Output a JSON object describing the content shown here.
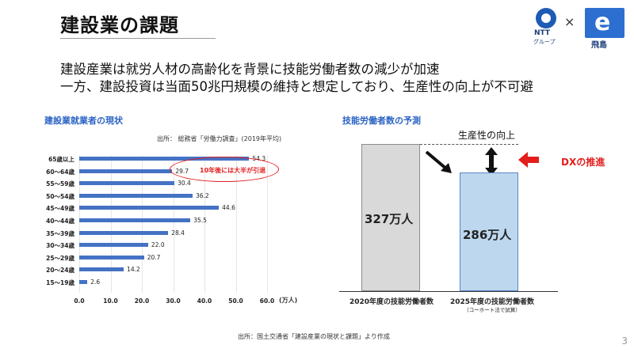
{
  "header": {
    "title": "建設業の課題",
    "logo_ntt_text": "NTT",
    "logo_ntt_sub": "グループ",
    "times_sign": "×",
    "logo_tobishima_glyph": "e",
    "logo_tobishima_text": "飛島"
  },
  "lead": {
    "line1": "建設産業は就労人材の高齢化を背景に技能労働者数の減少が加速",
    "line2": "一方、建設投資は当面50兆円規模の維持と想定しており、生産性の向上が不可避"
  },
  "left_chart": {
    "section_title": "建設業就業者の現状",
    "source": "出所： 総務省「労働力調査」(2019年平均)",
    "annotation": "10年後には大半が引退",
    "unit": "(万人)",
    "colors": {
      "bar": "#4472c4",
      "annotation": "#e41d1d"
    }
  },
  "right_chart": {
    "section_title": "技能労働者数の予測",
    "productivity_label": "生産性の向上",
    "dx_label": "DXの推進",
    "bar1_value_label": "327万人",
    "bar2_value_label": "286万人",
    "bar1_category": "2020年度の技能労働者数",
    "bar2_category": "2025年度の技能労働者数",
    "bar2_subnote": "（コーホート法で試算）"
  },
  "chart_data": [
    {
      "type": "bar",
      "orientation": "horizontal",
      "title": "建設業就業者の現状",
      "categories": [
        "65歳以上",
        "60～64歳",
        "55～59歳",
        "50～54歳",
        "45～49歳",
        "40～44歳",
        "35～39歳",
        "30～34歳",
        "25～29歳",
        "20～24歳",
        "15～19歳"
      ],
      "values": [
        54.3,
        29.7,
        30.4,
        36.2,
        44.6,
        35.5,
        28.4,
        22.0,
        20.7,
        14.2,
        2.6
      ],
      "value_labels": [
        "54.3",
        "29.7",
        "30.4",
        "36.2",
        "44.6",
        "35.5",
        "28.4",
        "22.0",
        "20.7",
        "14.2",
        "2.6"
      ],
      "xticks": [
        "0.0",
        "10.0",
        "20.0",
        "30.0",
        "40.0",
        "50.0",
        "60.0"
      ],
      "xlabel": "(万人)",
      "xlim": [
        0,
        60
      ],
      "grid": true
    },
    {
      "type": "bar",
      "title": "技能労働者数の予測",
      "categories": [
        "2020年度の技能労働者数",
        "2025年度の技能労働者数"
      ],
      "values": [
        327,
        286
      ],
      "unit": "万人",
      "colors": [
        "#d9d9d9",
        "#bdd7ee"
      ]
    }
  ],
  "footer": {
    "source": "出所：国土交通省「建設産業の現状と課題」より作成",
    "page_number": "3"
  }
}
